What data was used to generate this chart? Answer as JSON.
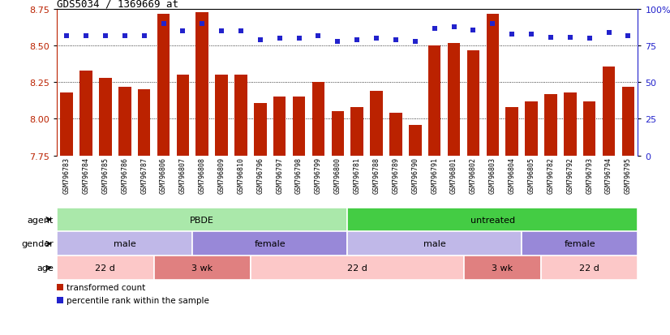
{
  "title": "GDS5034 / 1369669_at",
  "samples": [
    "GSM796783",
    "GSM796784",
    "GSM796785",
    "GSM796786",
    "GSM796787",
    "GSM796806",
    "GSM796807",
    "GSM796808",
    "GSM796809",
    "GSM796810",
    "GSM796796",
    "GSM796797",
    "GSM796798",
    "GSM796799",
    "GSM796800",
    "GSM796781",
    "GSM796788",
    "GSM796789",
    "GSM796790",
    "GSM796791",
    "GSM796801",
    "GSM796802",
    "GSM796803",
    "GSM796804",
    "GSM796805",
    "GSM796782",
    "GSM796792",
    "GSM796793",
    "GSM796794",
    "GSM796795"
  ],
  "bar_values": [
    8.18,
    8.33,
    8.28,
    8.22,
    8.2,
    8.72,
    8.3,
    8.73,
    8.3,
    8.3,
    8.11,
    8.15,
    8.15,
    8.25,
    8.05,
    8.08,
    8.19,
    8.04,
    7.96,
    8.5,
    8.52,
    8.47,
    8.72,
    8.08,
    8.12,
    8.17,
    8.18,
    8.12,
    8.36,
    8.22
  ],
  "percentile_values": [
    82,
    82,
    82,
    82,
    82,
    90,
    85,
    90,
    85,
    85,
    79,
    80,
    80,
    82,
    78,
    79,
    80,
    79,
    78,
    87,
    88,
    86,
    90,
    83,
    83,
    81,
    81,
    80,
    84,
    82
  ],
  "ylim_left": [
    7.75,
    8.75
  ],
  "ylim_right": [
    0,
    100
  ],
  "yticks_left": [
    7.75,
    8.0,
    8.25,
    8.5,
    8.75
  ],
  "yticks_right": [
    0,
    25,
    50,
    75,
    100
  ],
  "bar_color": "#bb2200",
  "dot_color": "#2222cc",
  "bar_bottom": 7.75,
  "agent_groups": [
    {
      "label": "PBDE",
      "start": 0,
      "end": 15,
      "color": "#aae8aa"
    },
    {
      "label": "untreated",
      "start": 15,
      "end": 30,
      "color": "#44cc44"
    }
  ],
  "gender_groups": [
    {
      "label": "male",
      "start": 0,
      "end": 7,
      "color": "#c0b8e8"
    },
    {
      "label": "female",
      "start": 7,
      "end": 15,
      "color": "#9888d8"
    },
    {
      "label": "male",
      "start": 15,
      "end": 24,
      "color": "#c0b8e8"
    },
    {
      "label": "female",
      "start": 24,
      "end": 30,
      "color": "#9888d8"
    }
  ],
  "age_groups": [
    {
      "label": "22 d",
      "start": 0,
      "end": 5,
      "color": "#fcc8c8"
    },
    {
      "label": "3 wk",
      "start": 5,
      "end": 10,
      "color": "#e08080"
    },
    {
      "label": "22 d",
      "start": 10,
      "end": 21,
      "color": "#fcc8c8"
    },
    {
      "label": "3 wk",
      "start": 21,
      "end": 25,
      "color": "#e08080"
    },
    {
      "label": "22 d",
      "start": 25,
      "end": 30,
      "color": "#fcc8c8"
    }
  ],
  "legend_items": [
    {
      "label": "transformed count",
      "color": "#bb2200"
    },
    {
      "label": "percentile rank within the sample",
      "color": "#2222cc"
    }
  ],
  "dotted_lines": [
    8.0,
    8.25,
    8.5
  ],
  "background_color": "#ffffff",
  "sample_label_fontsize": 6.0,
  "bar_width": 0.65,
  "xlabel_bg": "#d4d4d4",
  "row_label_fontsize": 8,
  "annotation_fontsize": 8
}
